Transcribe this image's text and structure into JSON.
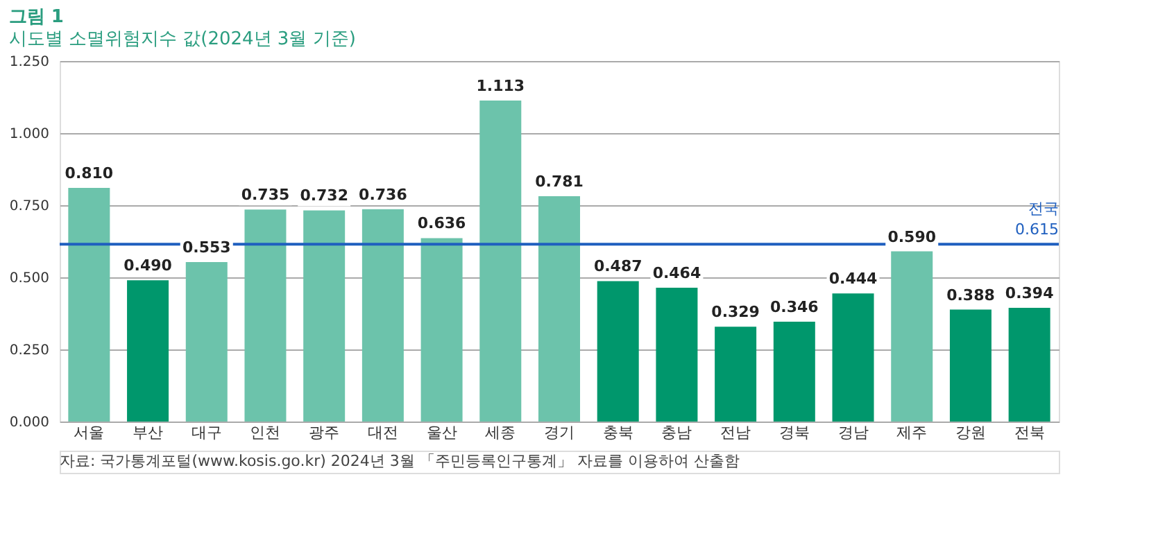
{
  "chart_data": {
    "type": "bar",
    "title": "그림 1",
    "subtitle": "시도별 소멸위험지수 값(2024년 3월 기준)",
    "categories": [
      "서울",
      "부산",
      "대구",
      "인천",
      "광주",
      "대전",
      "울산",
      "세종",
      "경기",
      "충북",
      "충남",
      "전남",
      "경북",
      "경남",
      "제주",
      "강원",
      "전북"
    ],
    "values": [
      0.81,
      0.49,
      0.553,
      0.735,
      0.732,
      0.736,
      0.636,
      1.113,
      0.781,
      0.487,
      0.464,
      0.329,
      0.346,
      0.444,
      0.59,
      0.388,
      0.394
    ],
    "colors": [
      "#6cc3ab",
      "#00976c",
      "#6cc3ab",
      "#6cc3ab",
      "#6cc3ab",
      "#6cc3ab",
      "#6cc3ab",
      "#6cc3ab",
      "#6cc3ab",
      "#00976c",
      "#00976c",
      "#00976c",
      "#00976c",
      "#00976c",
      "#6cc3ab",
      "#00976c",
      "#00976c"
    ],
    "ylim": [
      0,
      1.25
    ],
    "yticks": [
      {
        "value": 0,
        "label": "0.000"
      },
      {
        "value": 0.25,
        "label": "0.250"
      },
      {
        "value": 0.5,
        "label": "0.500"
      },
      {
        "value": 0.75,
        "label": "0.750"
      },
      {
        "value": 1.0,
        "label": "1.000"
      },
      {
        "value": 1.25,
        "label": "1.250"
      }
    ],
    "grid": "y",
    "value_labels": [
      "0.810",
      "0.490",
      "0.553",
      "0.735",
      "0.732",
      "0.736",
      "0.636",
      "1.113",
      "0.781",
      "0.487",
      "0.464",
      "0.329",
      "0.346",
      "0.444",
      "0.590",
      "0.388",
      "0.394"
    ],
    "ref_lines": [
      {
        "axis": "y",
        "value": 0.615,
        "label": "전국 0.615",
        "color": "#1f5fbf"
      }
    ],
    "annotations": [
      "자료: 국가통계포털(www.kosis.go.kr) 2024년 3월 「주민등록인구통계」 자료를 이용하여 산출함"
    ]
  }
}
